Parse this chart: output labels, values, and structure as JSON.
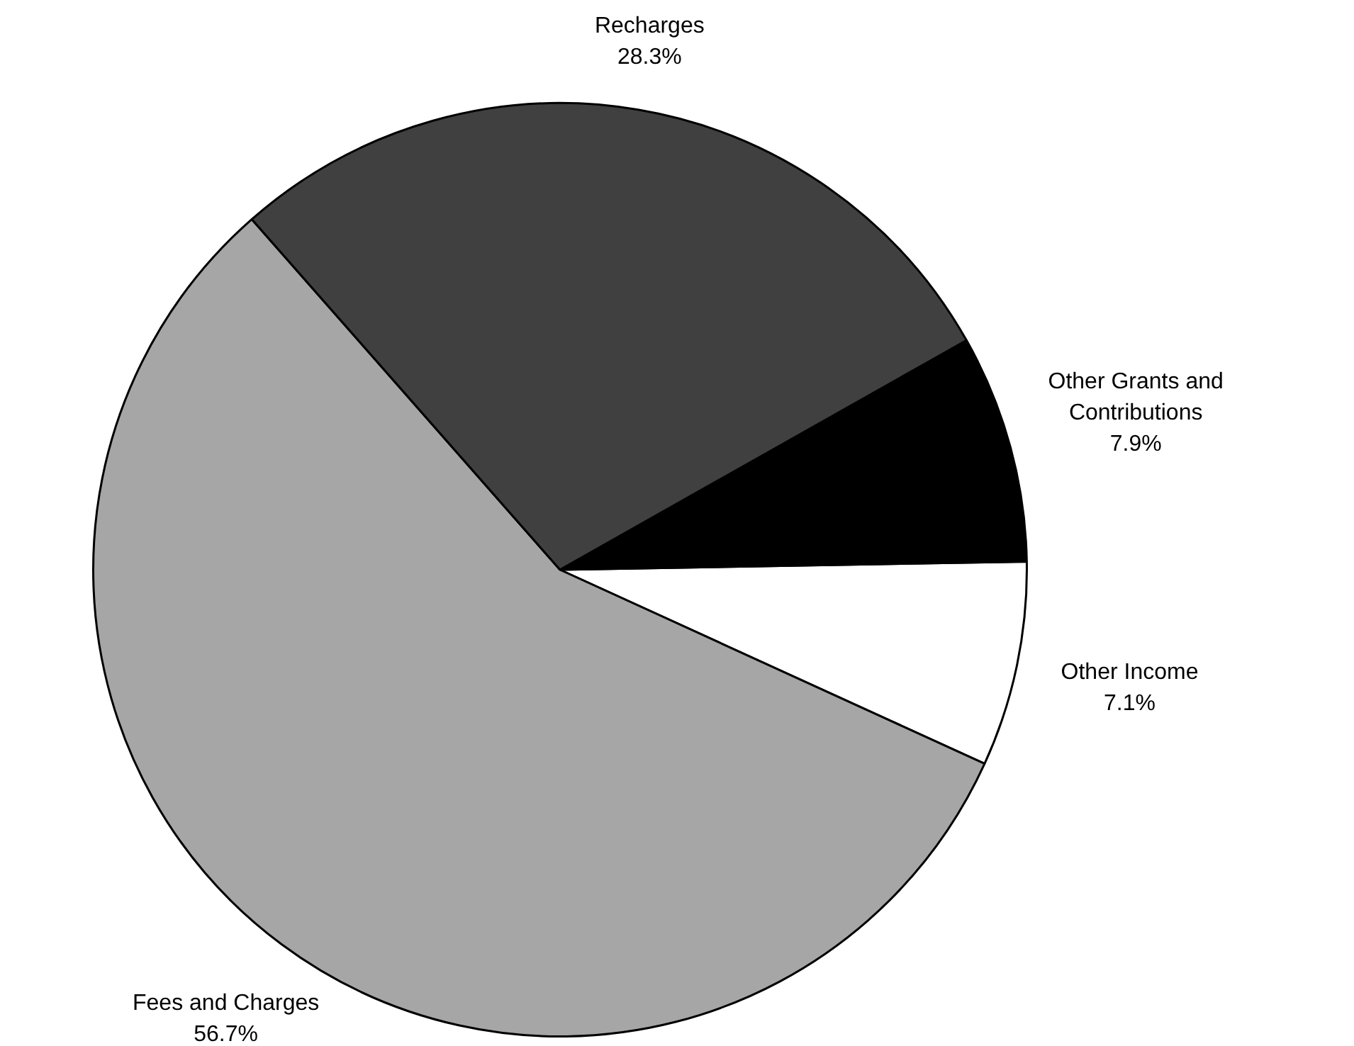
{
  "chart_data": {
    "type": "pie",
    "categories": [
      "Other Income",
      "Fees and Charges",
      "Recharges",
      "Other Grants and Contributions"
    ],
    "values": [
      7.1,
      56.7,
      28.3,
      7.9
    ],
    "colors": [
      "#ffffff",
      "#a6a6a6",
      "#404040",
      "#000000"
    ],
    "value_labels": [
      "7.1%",
      "56.7%",
      "28.3%",
      "7.9%"
    ],
    "legend": false
  }
}
